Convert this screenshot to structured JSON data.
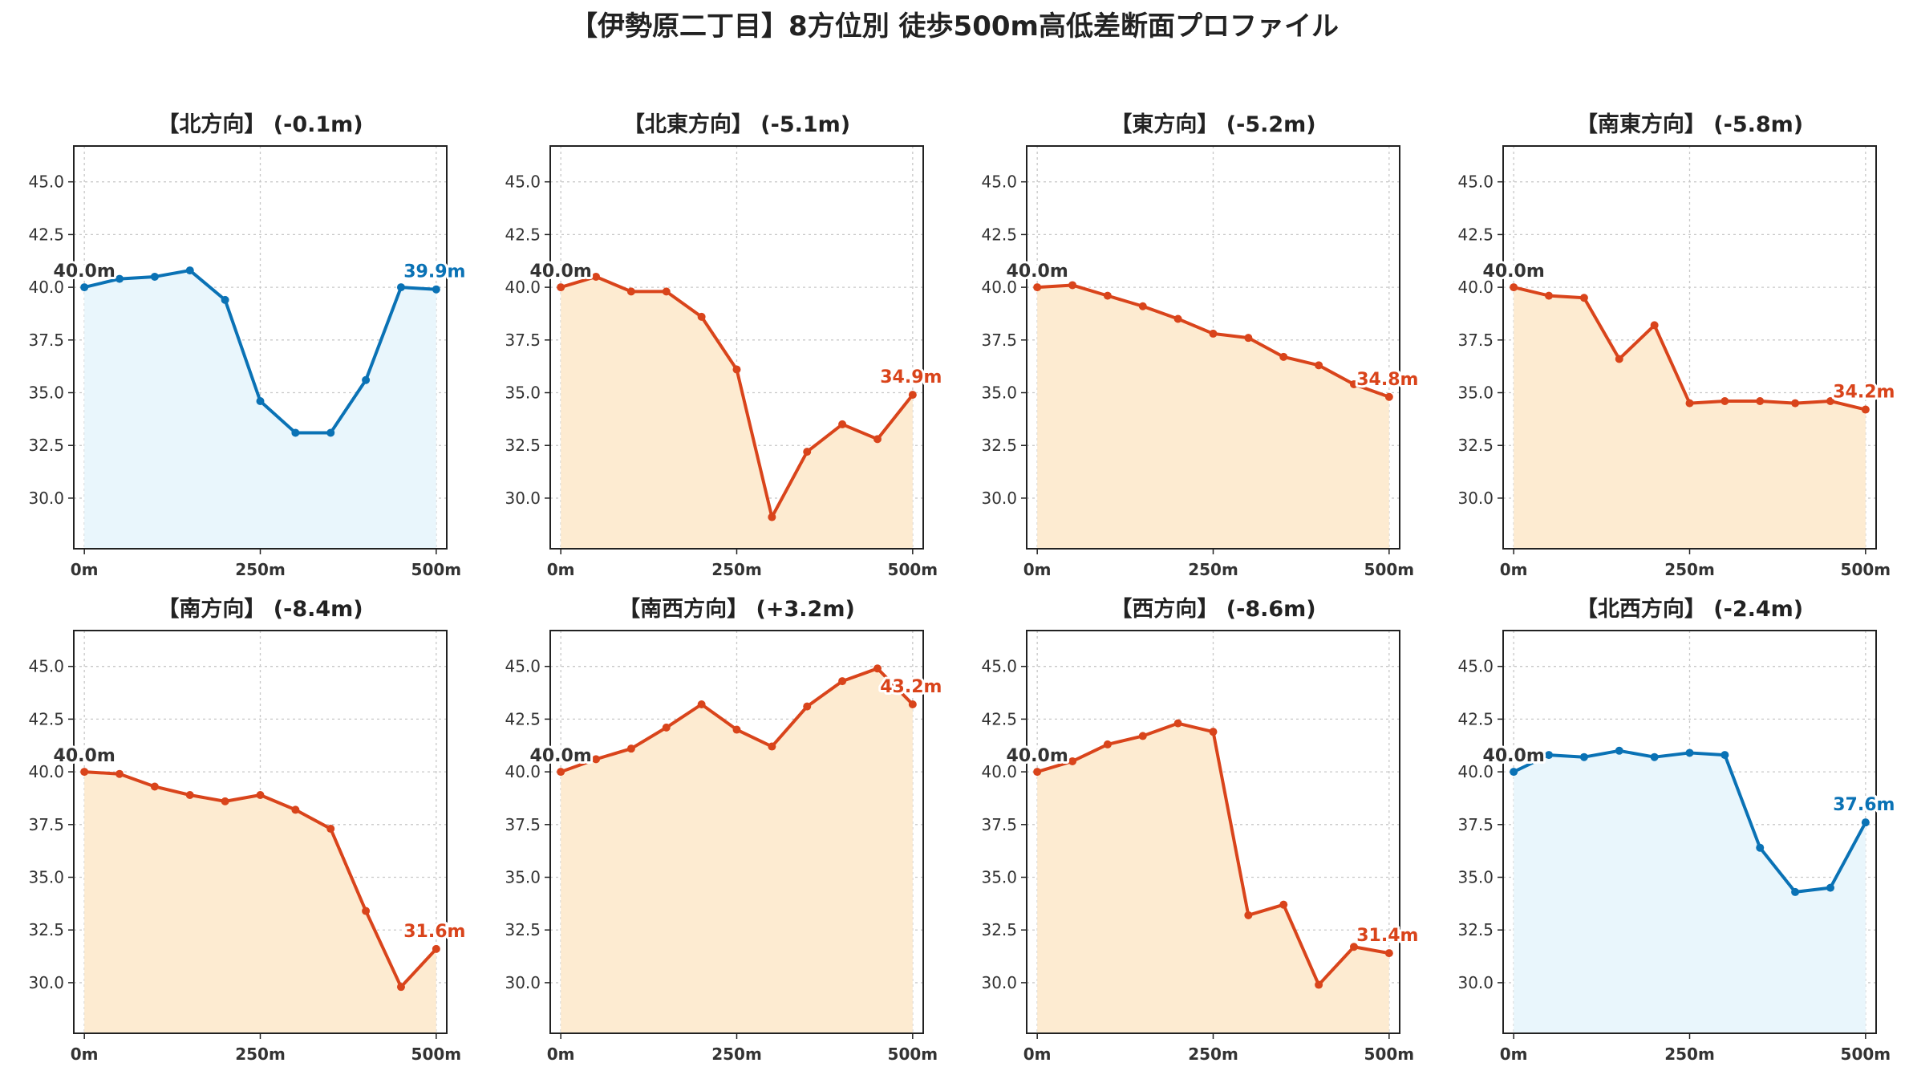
{
  "figure": {
    "title": "【伊勢原二丁目】8方位別 徒歩500m高低差断面プロファイル"
  },
  "colors": {
    "up_line": "#0a72b5",
    "up_fill": "#e9f6fc",
    "down_line": "#d9441b",
    "down_fill": "#fdebd1",
    "start_label": "#333333"
  },
  "chart_data": [
    {
      "type": "area",
      "title": "【北方向】 (-0.1m)",
      "trend": "up",
      "x": [
        0,
        50,
        100,
        150,
        200,
        250,
        300,
        350,
        400,
        450,
        500
      ],
      "y": [
        40.0,
        40.4,
        40.5,
        40.8,
        39.4,
        34.6,
        33.1,
        33.1,
        35.6,
        40.0,
        39.9
      ],
      "start_label": "40.0m",
      "end_label": "39.9m",
      "xticks": [
        0,
        250,
        500
      ],
      "xtick_labels": [
        "0m",
        "250m",
        "500m"
      ],
      "yticks": [
        30.0,
        32.5,
        35.0,
        37.5,
        40.0,
        42.5,
        45.0
      ],
      "ytick_labels": [
        "30.0",
        "32.5",
        "35.0",
        "37.5",
        "40.0",
        "42.5",
        "45.0"
      ],
      "xlim": [
        -15,
        515
      ],
      "ylim": [
        27.6,
        46.7
      ],
      "grid": true
    },
    {
      "type": "area",
      "title": "【北東方向】 (-5.1m)",
      "trend": "down",
      "x": [
        0,
        50,
        100,
        150,
        200,
        250,
        300,
        350,
        400,
        450,
        500
      ],
      "y": [
        40.0,
        40.5,
        39.8,
        39.8,
        38.6,
        36.1,
        29.1,
        32.2,
        33.5,
        32.8,
        34.9
      ],
      "start_label": "40.0m",
      "end_label": "34.9m",
      "xticks": [
        0,
        250,
        500
      ],
      "xtick_labels": [
        "0m",
        "250m",
        "500m"
      ],
      "yticks": [
        30.0,
        32.5,
        35.0,
        37.5,
        40.0,
        42.5,
        45.0
      ],
      "ytick_labels": [
        "30.0",
        "32.5",
        "35.0",
        "37.5",
        "40.0",
        "42.5",
        "45.0"
      ],
      "xlim": [
        -15,
        515
      ],
      "ylim": [
        27.6,
        46.7
      ],
      "grid": true
    },
    {
      "type": "area",
      "title": "【東方向】 (-5.2m)",
      "trend": "down",
      "x": [
        0,
        50,
        100,
        150,
        200,
        250,
        300,
        350,
        400,
        450,
        500
      ],
      "y": [
        40.0,
        40.1,
        39.6,
        39.1,
        38.5,
        37.8,
        37.6,
        36.7,
        36.3,
        35.4,
        34.8
      ],
      "start_label": "40.0m",
      "end_label": "34.8m",
      "xticks": [
        0,
        250,
        500
      ],
      "xtick_labels": [
        "0m",
        "250m",
        "500m"
      ],
      "yticks": [
        30.0,
        32.5,
        35.0,
        37.5,
        40.0,
        42.5,
        45.0
      ],
      "ytick_labels": [
        "30.0",
        "32.5",
        "35.0",
        "37.5",
        "40.0",
        "42.5",
        "45.0"
      ],
      "xlim": [
        -15,
        515
      ],
      "ylim": [
        27.6,
        46.7
      ],
      "grid": true
    },
    {
      "type": "area",
      "title": "【南東方向】 (-5.8m)",
      "trend": "down",
      "x": [
        0,
        50,
        100,
        150,
        200,
        250,
        300,
        350,
        400,
        450,
        500
      ],
      "y": [
        40.0,
        39.6,
        39.5,
        36.6,
        38.2,
        34.5,
        34.6,
        34.6,
        34.5,
        34.6,
        34.2
      ],
      "start_label": "40.0m",
      "end_label": "34.2m",
      "xticks": [
        0,
        250,
        500
      ],
      "xtick_labels": [
        "0m",
        "250m",
        "500m"
      ],
      "yticks": [
        30.0,
        32.5,
        35.0,
        37.5,
        40.0,
        42.5,
        45.0
      ],
      "ytick_labels": [
        "30.0",
        "32.5",
        "35.0",
        "37.5",
        "40.0",
        "42.5",
        "45.0"
      ],
      "xlim": [
        -15,
        515
      ],
      "ylim": [
        27.6,
        46.7
      ],
      "grid": true
    },
    {
      "type": "area",
      "title": "【南方向】 (-8.4m)",
      "trend": "down",
      "x": [
        0,
        50,
        100,
        150,
        200,
        250,
        300,
        350,
        400,
        450,
        500
      ],
      "y": [
        40.0,
        39.9,
        39.3,
        38.9,
        38.6,
        38.9,
        38.2,
        37.3,
        33.4,
        29.8,
        31.6
      ],
      "start_label": "40.0m",
      "end_label": "31.6m",
      "xticks": [
        0,
        250,
        500
      ],
      "xtick_labels": [
        "0m",
        "250m",
        "500m"
      ],
      "yticks": [
        30.0,
        32.5,
        35.0,
        37.5,
        40.0,
        42.5,
        45.0
      ],
      "ytick_labels": [
        "30.0",
        "32.5",
        "35.0",
        "37.5",
        "40.0",
        "42.5",
        "45.0"
      ],
      "xlim": [
        -15,
        515
      ],
      "ylim": [
        27.6,
        46.7
      ],
      "grid": true
    },
    {
      "type": "area",
      "title": "【南西方向】 (+3.2m)",
      "trend": "down",
      "x": [
        0,
        50,
        100,
        150,
        200,
        250,
        300,
        350,
        400,
        450,
        500
      ],
      "y": [
        40.0,
        40.6,
        41.1,
        42.1,
        43.2,
        42.0,
        41.2,
        43.1,
        44.3,
        44.9,
        43.2
      ],
      "start_label": "40.0m",
      "end_label": "43.2m",
      "xticks": [
        0,
        250,
        500
      ],
      "xtick_labels": [
        "0m",
        "250m",
        "500m"
      ],
      "yticks": [
        30.0,
        32.5,
        35.0,
        37.5,
        40.0,
        42.5,
        45.0
      ],
      "ytick_labels": [
        "30.0",
        "32.5",
        "35.0",
        "37.5",
        "40.0",
        "42.5",
        "45.0"
      ],
      "xlim": [
        -15,
        515
      ],
      "ylim": [
        27.6,
        46.7
      ],
      "grid": true
    },
    {
      "type": "area",
      "title": "【西方向】 (-8.6m)",
      "trend": "down",
      "x": [
        0,
        50,
        100,
        150,
        200,
        250,
        300,
        350,
        400,
        450,
        500
      ],
      "y": [
        40.0,
        40.5,
        41.3,
        41.7,
        42.3,
        41.9,
        33.2,
        33.7,
        29.9,
        31.7,
        31.4
      ],
      "start_label": "40.0m",
      "end_label": "31.4m",
      "xticks": [
        0,
        250,
        500
      ],
      "xtick_labels": [
        "0m",
        "250m",
        "500m"
      ],
      "yticks": [
        30.0,
        32.5,
        35.0,
        37.5,
        40.0,
        42.5,
        45.0
      ],
      "ytick_labels": [
        "30.0",
        "32.5",
        "35.0",
        "37.5",
        "40.0",
        "42.5",
        "45.0"
      ],
      "xlim": [
        -15,
        515
      ],
      "ylim": [
        27.6,
        46.7
      ],
      "grid": true
    },
    {
      "type": "area",
      "title": "【北西方向】 (-2.4m)",
      "trend": "up",
      "x": [
        0,
        50,
        100,
        150,
        200,
        250,
        300,
        350,
        400,
        450,
        500
      ],
      "y": [
        40.0,
        40.8,
        40.7,
        41.0,
        40.7,
        40.9,
        40.8,
        36.4,
        34.3,
        34.5,
        37.6
      ],
      "start_label": "40.0m",
      "end_label": "37.6m",
      "xticks": [
        0,
        250,
        500
      ],
      "xtick_labels": [
        "0m",
        "250m",
        "500m"
      ],
      "yticks": [
        30.0,
        32.5,
        35.0,
        37.5,
        40.0,
        42.5,
        45.0
      ],
      "ytick_labels": [
        "30.0",
        "32.5",
        "35.0",
        "37.5",
        "40.0",
        "42.5",
        "45.0"
      ],
      "xlim": [
        -15,
        515
      ],
      "ylim": [
        27.6,
        46.7
      ],
      "grid": true
    }
  ]
}
